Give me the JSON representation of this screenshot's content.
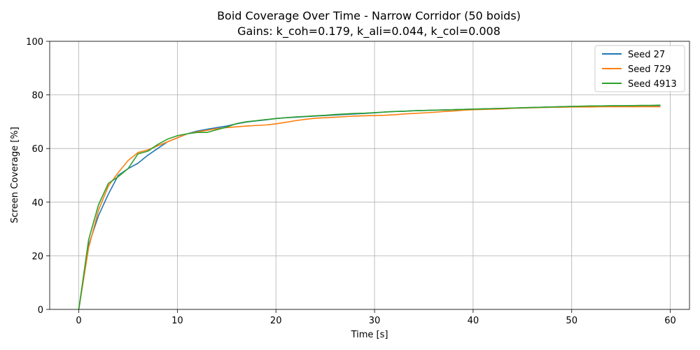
{
  "chart_data": {
    "type": "line",
    "title": "Boid Coverage Over Time - Narrow Corridor  (50 boids)",
    "subtitle": "Gains: k_coh=0.179, k_ali=0.044, k_col=0.008",
    "xlabel": "Time [s]",
    "ylabel": "Screen Coverage [%]",
    "xlim": [
      -2.95,
      61.95
    ],
    "ylim": [
      0,
      100
    ],
    "xticks": [
      0,
      10,
      20,
      30,
      40,
      50,
      60
    ],
    "yticks": [
      0,
      20,
      40,
      60,
      80,
      100
    ],
    "grid": true,
    "legend_position": "top-right",
    "x": [
      0,
      1,
      2,
      3,
      4,
      5,
      6,
      7,
      8,
      9,
      10,
      11,
      12,
      13,
      14,
      15,
      16,
      17,
      18,
      19,
      20,
      21,
      22,
      23,
      24,
      25,
      26,
      27,
      28,
      29,
      30,
      31,
      32,
      33,
      34,
      35,
      36,
      37,
      38,
      39,
      40,
      41,
      42,
      43,
      44,
      45,
      46,
      47,
      48,
      49,
      50,
      51,
      52,
      53,
      54,
      55,
      56,
      57,
      58,
      59
    ],
    "series": [
      {
        "name": "Seed 27",
        "color": "#1f77b4",
        "values": [
          0,
          24,
          35,
          43,
          50,
          52.5,
          54.5,
          57.5,
          60,
          62.5,
          64,
          65.5,
          66.5,
          67.2,
          67.8,
          68.4,
          69.2,
          69.9,
          70.3,
          70.7,
          71.2,
          71.5,
          71.7,
          71.9,
          72.1,
          72.3,
          72.5,
          72.7,
          72.9,
          73.1,
          73.3,
          73.6,
          73.8,
          73.9,
          74.1,
          74.2,
          74.3,
          74.4,
          74.5,
          74.6,
          74.7,
          74.8,
          74.9,
          75,
          75.1,
          75.2,
          75.3,
          75.4,
          75.5,
          75.6,
          75.7,
          75.7,
          75.8,
          75.8,
          75.9,
          75.9,
          76,
          76,
          76,
          76
        ]
      },
      {
        "name": "Seed 729",
        "color": "#ff7f0e",
        "values": [
          0,
          23,
          37,
          46,
          51,
          55.5,
          58.5,
          59.5,
          61,
          62.5,
          64,
          65.5,
          66.2,
          66.8,
          67.4,
          67.8,
          68.1,
          68.4,
          68.6,
          68.8,
          69.2,
          69.8,
          70.4,
          70.9,
          71.3,
          71.5,
          71.7,
          71.9,
          72.1,
          72.2,
          72.3,
          72.4,
          72.6,
          72.9,
          73.1,
          73.3,
          73.5,
          73.8,
          74,
          74.3,
          74.5,
          74.6,
          74.7,
          74.8,
          75,
          75.1,
          75.2,
          75.3,
          75.4,
          75.4,
          75.5,
          75.5,
          75.5,
          75.6,
          75.6,
          75.6,
          75.6,
          75.6,
          75.6,
          75.6
        ]
      },
      {
        "name": "Seed 4913",
        "color": "#2ca02c",
        "values": [
          0,
          26,
          39,
          47,
          49.5,
          52.5,
          58,
          59,
          61.5,
          63.5,
          64.8,
          65.5,
          66,
          66,
          67,
          68,
          69.3,
          70,
          70.4,
          70.8,
          71.2,
          71.5,
          71.8,
          72,
          72.2,
          72.4,
          72.7,
          72.9,
          73.1,
          73.2,
          73.4,
          73.6,
          73.8,
          73.9,
          74.1,
          74.2,
          74.3,
          74.4,
          74.5,
          74.6,
          74.7,
          74.8,
          74.9,
          75,
          75.1,
          75.2,
          75.3,
          75.4,
          75.5,
          75.6,
          75.7,
          75.8,
          75.9,
          75.9,
          76,
          76,
          76,
          76.1,
          76.1,
          76.2
        ]
      }
    ]
  },
  "style": {
    "grid_color": "#b0b0b0",
    "axis_color": "#000000",
    "legend_border": "#cccccc"
  }
}
